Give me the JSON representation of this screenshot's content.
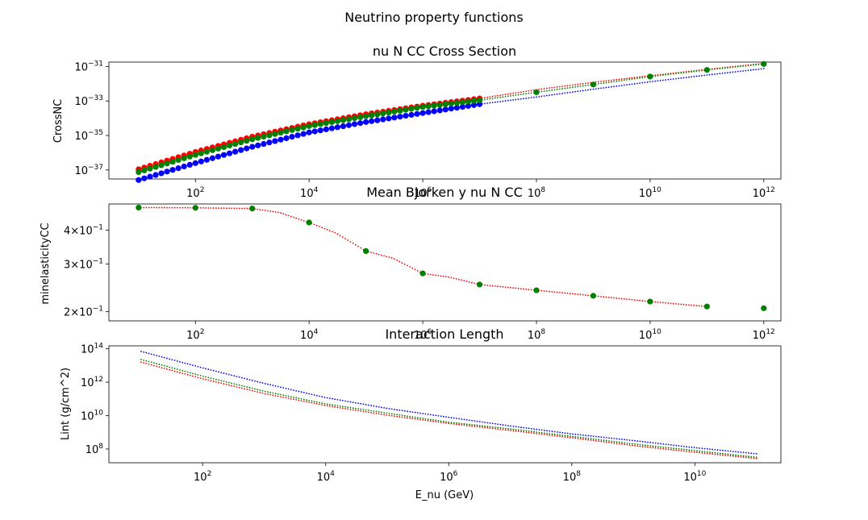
{
  "figure_title": "Neutrino property functions",
  "chart_data": [
    {
      "type": "scatter",
      "title": "nu N CC Cross Section",
      "xlabel": "",
      "ylabel": "CrossNC",
      "xscale": "log",
      "yscale": "log",
      "xlim": [
        3,
        2000000000000.0
      ],
      "ylim": [
        3e-38,
        1.8e-31
      ],
      "xticks": [
        {
          "v": 100.0,
          "b": "10",
          "e": "2"
        },
        {
          "v": 10000.0,
          "b": "10",
          "e": "4"
        },
        {
          "v": 1000000.0,
          "b": "10",
          "e": "6"
        },
        {
          "v": 100000000.0,
          "b": "10",
          "e": "8"
        },
        {
          "v": 10000000000.0,
          "b": "10",
          "e": "10"
        },
        {
          "v": 1000000000000.0,
          "b": "10",
          "e": "12"
        }
      ],
      "yticks": [
        {
          "v": 1e-37,
          "b": "10",
          "e": "−37"
        },
        {
          "v": 1e-35,
          "b": "10",
          "e": "−35"
        },
        {
          "v": 1e-33,
          "b": "10",
          "e": "−33"
        },
        {
          "v": 1e-31,
          "b": "10",
          "e": "−31"
        }
      ],
      "grid": false,
      "series": [
        {
          "color": "#ff0000",
          "style": "dotted",
          "marker": "o",
          "dense_x": [
            10,
            10000000.0
          ],
          "dense_n": 61,
          "x": [
            10,
            100,
            1000.0,
            10000.0,
            100000.0,
            1000000.0,
            10000000.0,
            100000000.0,
            1000000000.0,
            10000000000.0,
            100000000000.0,
            1000000000000.0
          ],
          "y": [
            1.1e-37,
            1.1e-36,
            8.5e-36,
            4.5e-35,
            1.7e-34,
            5.3e-34,
            1.4e-33,
            4.5e-33,
            1.2e-32,
            2.9e-32,
            6.8e-32,
            1.5e-31
          ]
        },
        {
          "color": "#0000ff",
          "style": "dotted",
          "marker": "o",
          "dense_x": [
            10,
            10000000.0
          ],
          "dense_n": 61,
          "x": [
            10,
            100,
            1000.0,
            10000.0,
            100000.0,
            1000000.0,
            10000000.0,
            100000000.0,
            1000000000.0,
            10000000000.0,
            100000000000.0,
            1000000000000.0
          ],
          "y": [
            2.6e-38,
            2.5e-37,
            2.2e-36,
            1.5e-35,
            6e-35,
            2e-34,
            6.5e-34,
            1.7e-33,
            4.8e-33,
            1.3e-32,
            3.2e-32,
            7.5e-32
          ]
        },
        {
          "color": "#008000",
          "style": "dotted",
          "marker": "o",
          "dense_x": [
            10,
            10000000.0
          ],
          "dense_n": 61,
          "x": [
            10,
            100,
            1000.0,
            10000.0,
            100000.0,
            1000000.0,
            10000000.0,
            100000000.0,
            1000000000.0,
            10000000000.0,
            100000000000.0,
            1000000000000.0
          ],
          "y": [
            7.5e-38,
            7.5e-37,
            6e-36,
            3.5e-35,
            1.3e-34,
            4.5e-34,
            1.1e-33,
            3.2e-33,
            9e-33,
            2.6e-32,
            6.3e-32,
            1.4e-31
          ],
          "big_markers_x": [
            100000000.0,
            1000000000.0,
            10000000000.0,
            100000000000.0,
            1000000000000.0
          ]
        }
      ]
    },
    {
      "type": "scatter",
      "title": "Mean Bjorken y nu N CC",
      "xlabel": "",
      "ylabel": "minelasticityCC",
      "xscale": "log",
      "yscale": "log",
      "xlim": [
        3,
        2000000000000.0
      ],
      "ylim": [
        0.185,
        0.5
      ],
      "xticks": [
        {
          "v": 100.0,
          "b": "10",
          "e": "2"
        },
        {
          "v": 10000.0,
          "b": "10",
          "e": "4"
        },
        {
          "v": 1000000.0,
          "b": "10",
          "e": "6"
        },
        {
          "v": 100000000.0,
          "b": "10",
          "e": "8"
        },
        {
          "v": 10000000000.0,
          "b": "10",
          "e": "10"
        },
        {
          "v": 1000000000000.0,
          "b": "10",
          "e": "12"
        }
      ],
      "yticks": [
        {
          "v": 0.2,
          "m": "2×",
          "b": "10",
          "e": "−1"
        },
        {
          "v": 0.3,
          "m": "3×",
          "b": "10",
          "e": "−1"
        },
        {
          "v": 0.4,
          "m": "4×",
          "b": "10",
          "e": "−1"
        }
      ],
      "grid": false,
      "series": [
        {
          "color": "#ff0000",
          "style": "dotted",
          "marker": "none",
          "x": [
            10,
            100,
            1000.0,
            3000.0,
            10000.0,
            30000.0,
            100000.0,
            300000.0,
            1000000.0,
            3000000.0,
            10000000.0,
            100000000.0,
            1000000000.0,
            10000000000.0,
            100000000000.0
          ],
          "y": [
            0.485,
            0.484,
            0.481,
            0.465,
            0.427,
            0.39,
            0.335,
            0.315,
            0.277,
            0.268,
            0.252,
            0.24,
            0.229,
            0.218,
            0.209
          ]
        },
        {
          "color": "#008000",
          "style": "none",
          "marker": "o",
          "x": [
            10,
            100,
            1000.0,
            10000.0,
            100000.0,
            1000000.0,
            10000000.0,
            100000000.0,
            1000000000.0,
            10000000000.0,
            100000000000.0,
            1000000000000.0
          ],
          "y": [
            0.485,
            0.484,
            0.481,
            0.427,
            0.335,
            0.277,
            0.252,
            0.24,
            0.229,
            0.218,
            0.209,
            0.206
          ]
        }
      ]
    },
    {
      "type": "scatter",
      "title": "Interaction Length",
      "xlabel": "E_nu (GeV)",
      "ylabel": "Lint (g/cm^2)",
      "xscale": "log",
      "yscale": "log",
      "xlim": [
        3,
        250000000000.0
      ],
      "ylim": [
        15000000.0,
        150000000000000.0
      ],
      "xticks": [
        {
          "v": 100.0,
          "b": "10",
          "e": "2"
        },
        {
          "v": 10000.0,
          "b": "10",
          "e": "4"
        },
        {
          "v": 1000000.0,
          "b": "10",
          "e": "6"
        },
        {
          "v": 100000000.0,
          "b": "10",
          "e": "8"
        },
        {
          "v": 10000000000.0,
          "b": "10",
          "e": "10"
        }
      ],
      "yticks": [
        {
          "v": 100000000.0,
          "b": "10",
          "e": "8"
        },
        {
          "v": 10000000000.0,
          "b": "10",
          "e": "10"
        },
        {
          "v": 1000000000000.0,
          "b": "10",
          "e": "12"
        },
        {
          "v": 100000000000000.0,
          "b": "10",
          "e": "14"
        }
      ],
      "grid": false,
      "series": [
        {
          "color": "#0000ff",
          "style": "dotted",
          "marker": "none",
          "x": [
            10,
            100,
            1000.0,
            10000.0,
            100000.0,
            1000000.0,
            10000000.0,
            100000000.0,
            1000000000.0,
            10000000000.0,
            100000000000.0
          ],
          "y": [
            70000000000000.0,
            7200000000000.0,
            850000000000.0,
            120000000000.0,
            27000000000.0,
            7900000000.0,
            2400000000.0,
            800000000.0,
            320000000.0,
            120000000.0,
            52000000.0
          ]
        },
        {
          "color": "#ff0000",
          "style": "dotted",
          "marker": "none",
          "x": [
            10,
            100,
            1000.0,
            10000.0,
            100000.0,
            1000000.0,
            10000000.0,
            100000000.0,
            1000000000.0,
            10000000000.0,
            100000000000.0
          ],
          "y": [
            16000000000000.0,
            1600000000000.0,
            210000000000.0,
            40000000000.0,
            10600000000.0,
            3400000000.0,
            1300000000.0,
            470000000.0,
            160000000.0,
            64000000.0,
            27000000.0
          ]
        },
        {
          "color": "#008000",
          "style": "dotted",
          "marker": "none",
          "x": [
            10,
            100,
            1000.0,
            10000.0,
            100000.0,
            1000000.0,
            10000000.0,
            100000000.0,
            1000000000.0,
            10000000000.0,
            100000000000.0
          ],
          "y": [
            23000000000000.0,
            2300000000000.0,
            290000000000.0,
            50000000000.0,
            14000000000.0,
            4000000000.0,
            1600000000.0,
            570000000.0,
            200000000.0,
            80000000.0,
            32000000.0
          ]
        }
      ]
    }
  ]
}
